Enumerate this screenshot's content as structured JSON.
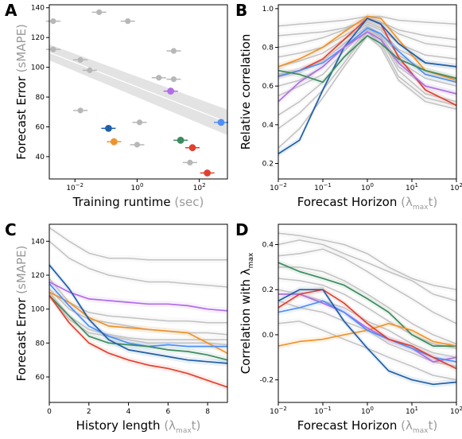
{
  "panels": {
    "A": {
      "letter": "A"
    },
    "B": {
      "letter": "B"
    },
    "C": {
      "letter": "C"
    },
    "D": {
      "letter": "D"
    }
  },
  "colors": {
    "gray": "#b7b7b7",
    "blue": "#1f5fa8",
    "lightblue": "#4f8ff7",
    "orange": "#f0922b",
    "green": "#3d8b5e",
    "red": "#e0412f",
    "purple": "#b06de6",
    "band": "#e3e3e3"
  },
  "chart_data": [
    {
      "panel": "A",
      "type": "scatter",
      "ylabel": {
        "main": "Forecast Error",
        "unit": "(sMAPE)"
      },
      "xlabel": {
        "main": "Training runtime",
        "unit": "(sec)"
      },
      "xscale": "log",
      "xlim": [
        0.0015,
        800
      ],
      "ylim": [
        25,
        142
      ],
      "xticks": [
        {
          "v": 0.01,
          "b": "10",
          "e": "−2"
        },
        {
          "v": 1,
          "b": "10",
          "e": "0"
        },
        {
          "v": 100,
          "b": "10",
          "e": "2"
        }
      ],
      "yticks": [
        40,
        60,
        80,
        100,
        120,
        140
      ],
      "trend": {
        "x": [
          0.0015,
          800
        ],
        "y": [
          110,
          63
        ]
      },
      "points": [
        {
          "x": 0.002,
          "y": 131,
          "c": "gray"
        },
        {
          "x": 0.06,
          "y": 137,
          "c": "gray"
        },
        {
          "x": 0.5,
          "y": 131,
          "c": "gray"
        },
        {
          "x": 0.002,
          "y": 112,
          "c": "gray"
        },
        {
          "x": 0.015,
          "y": 105,
          "c": "gray"
        },
        {
          "x": 0.03,
          "y": 98,
          "c": "gray"
        },
        {
          "x": 15,
          "y": 111,
          "c": "gray"
        },
        {
          "x": 5,
          "y": 93,
          "c": "gray"
        },
        {
          "x": 15,
          "y": 92,
          "c": "gray"
        },
        {
          "x": 12,
          "y": 84,
          "c": "purple"
        },
        {
          "x": 0.015,
          "y": 71,
          "c": "gray"
        },
        {
          "x": 1.2,
          "y": 63,
          "c": "gray"
        },
        {
          "x": 0.12,
          "y": 59,
          "c": "blue"
        },
        {
          "x": 0.18,
          "y": 50,
          "c": "orange"
        },
        {
          "x": 1,
          "y": 48,
          "c": "gray"
        },
        {
          "x": 25,
          "y": 51,
          "c": "green"
        },
        {
          "x": 60,
          "y": 46,
          "c": "red"
        },
        {
          "x": 50,
          "y": 36,
          "c": "gray"
        },
        {
          "x": 180,
          "y": 29,
          "c": "red"
        },
        {
          "x": 500,
          "y": 63,
          "c": "lightblue"
        }
      ]
    },
    {
      "panel": "B",
      "type": "line",
      "ylabel": {
        "main": "Relative correlation",
        "unit": ""
      },
      "xlabel": {
        "main": "Forecast Horizon",
        "unit": "(λ",
        "sub": "max",
        "tail": "t)"
      },
      "xscale": "log",
      "xlim": [
        0.01,
        100
      ],
      "ylim": [
        0.12,
        1.02
      ],
      "xticks": [
        {
          "v": 0.01,
          "b": "10",
          "e": "−2"
        },
        {
          "v": 0.1,
          "b": "10",
          "e": "−1"
        },
        {
          "v": 1,
          "b": "10",
          "e": "0"
        },
        {
          "v": 10,
          "b": "10",
          "e": "1"
        },
        {
          "v": 100,
          "b": "10",
          "e": "2"
        }
      ],
      "yticks": [
        0.2,
        0.4,
        0.6,
        0.8,
        1.0
      ],
      "x": [
        0.01,
        0.03,
        0.1,
        0.3,
        1,
        2,
        5,
        20,
        100
      ],
      "series": [
        {
          "c": "gray",
          "y": [
            0.91,
            0.92,
            0.93,
            0.94,
            0.96,
            0.96,
            0.94,
            0.93,
            0.92
          ]
        },
        {
          "c": "gray",
          "y": [
            0.86,
            0.87,
            0.88,
            0.9,
            0.94,
            0.93,
            0.89,
            0.86,
            0.84
          ]
        },
        {
          "c": "gray",
          "y": [
            0.8,
            0.82,
            0.85,
            0.89,
            0.95,
            0.93,
            0.87,
            0.82,
            0.8
          ]
        },
        {
          "c": "gray",
          "y": [
            0.75,
            0.77,
            0.8,
            0.86,
            0.93,
            0.9,
            0.82,
            0.76,
            0.74
          ]
        },
        {
          "c": "gray",
          "y": [
            0.7,
            0.73,
            0.77,
            0.84,
            0.92,
            0.89,
            0.79,
            0.72,
            0.7
          ]
        },
        {
          "c": "gray",
          "y": [
            0.66,
            0.68,
            0.73,
            0.82,
            0.91,
            0.87,
            0.76,
            0.68,
            0.64
          ]
        },
        {
          "c": "gray",
          "y": [
            0.6,
            0.63,
            0.7,
            0.8,
            0.9,
            0.86,
            0.73,
            0.64,
            0.6
          ]
        },
        {
          "c": "gray",
          "y": [
            0.55,
            0.6,
            0.66,
            0.78,
            0.9,
            0.85,
            0.7,
            0.6,
            0.56
          ]
        },
        {
          "c": "gray",
          "y": [
            0.45,
            0.52,
            0.62,
            0.75,
            0.89,
            0.84,
            0.68,
            0.56,
            0.52
          ]
        },
        {
          "c": "gray",
          "y": [
            0.38,
            0.46,
            0.58,
            0.72,
            0.88,
            0.82,
            0.65,
            0.54,
            0.5
          ]
        },
        {
          "c": "gray",
          "y": [
            0.28,
            0.38,
            0.54,
            0.7,
            0.86,
            0.8,
            0.63,
            0.52,
            0.48
          ]
        },
        {
          "c": "orange",
          "y": [
            0.7,
            0.74,
            0.8,
            0.88,
            0.96,
            0.95,
            0.84,
            0.68,
            0.63
          ]
        },
        {
          "c": "red",
          "y": [
            0.65,
            0.68,
            0.74,
            0.84,
            0.95,
            0.92,
            0.75,
            0.58,
            0.5
          ]
        },
        {
          "c": "blue",
          "y": [
            0.25,
            0.32,
            0.58,
            0.8,
            0.95,
            0.92,
            0.82,
            0.72,
            0.7
          ]
        },
        {
          "c": "lightblue",
          "y": [
            0.65,
            0.68,
            0.72,
            0.8,
            0.9,
            0.87,
            0.78,
            0.66,
            0.62
          ]
        },
        {
          "c": "purple",
          "y": [
            0.52,
            0.62,
            0.7,
            0.8,
            0.88,
            0.84,
            0.72,
            0.6,
            0.56
          ]
        },
        {
          "c": "green",
          "y": [
            0.68,
            0.66,
            0.62,
            0.75,
            0.86,
            0.82,
            0.74,
            0.68,
            0.64
          ]
        }
      ]
    },
    {
      "panel": "C",
      "type": "line",
      "ylabel": {
        "main": "Forecast Error",
        "unit": "(sMAPE)"
      },
      "xlabel": {
        "main": "History length",
        "unit": "(λ",
        "sub": "max",
        "tail": "t)"
      },
      "xscale": "linear",
      "xlim": [
        0,
        9
      ],
      "ylim": [
        45,
        150
      ],
      "xticks": [
        0,
        2,
        4,
        6,
        8
      ],
      "yticks": [
        60,
        80,
        100,
        120,
        140
      ],
      "x": [
        0,
        1,
        2,
        3,
        4,
        5,
        6,
        7,
        8,
        9
      ],
      "series": [
        {
          "c": "gray",
          "y": [
            148,
            140,
            133,
            130,
            130,
            129,
            129,
            129,
            129,
            129
          ]
        },
        {
          "c": "gray",
          "y": [
            140,
            130,
            124,
            120,
            118,
            116,
            116,
            115,
            114,
            113
          ]
        },
        {
          "c": "gray",
          "y": [
            118,
            104,
            98,
            96,
            95,
            94,
            93,
            93,
            92,
            92
          ]
        },
        {
          "c": "gray",
          "y": [
            112,
            100,
            94,
            92,
            90,
            88,
            87,
            86,
            86,
            85
          ]
        },
        {
          "c": "gray",
          "y": [
            110,
            96,
            88,
            85,
            83,
            82,
            82,
            82,
            82,
            82
          ]
        },
        {
          "c": "gray",
          "y": [
            108,
            94,
            86,
            84,
            82,
            80,
            80,
            80,
            80,
            79
          ]
        },
        {
          "c": "purple",
          "y": [
            116,
            110,
            106,
            105,
            104,
            103,
            103,
            102,
            100,
            99
          ]
        },
        {
          "c": "orange",
          "y": [
            110,
            104,
            95,
            90,
            89,
            88,
            87,
            86,
            80,
            74
          ]
        },
        {
          "c": "lightblue",
          "y": [
            115,
            102,
            90,
            84,
            80,
            78,
            79,
            78,
            78,
            78
          ]
        },
        {
          "c": "green",
          "y": [
            108,
            96,
            84,
            80,
            79,
            78,
            76,
            75,
            73,
            70
          ]
        },
        {
          "c": "blue",
          "y": [
            126,
            112,
            94,
            82,
            76,
            74,
            72,
            70,
            69,
            68
          ]
        },
        {
          "c": "red",
          "y": [
            108,
            92,
            80,
            74,
            70,
            67,
            65,
            62,
            58,
            54
          ]
        }
      ]
    },
    {
      "panel": "D",
      "type": "line",
      "ylabel": {
        "main": "Correlation with",
        "unit": "λ",
        "sub": "max"
      },
      "xlabel": {
        "main": "Forecast Horizon",
        "unit": "(λ",
        "sub": "max",
        "tail": "t)"
      },
      "xscale": "log",
      "xlim": [
        0.01,
        100
      ],
      "ylim": [
        -0.3,
        0.49
      ],
      "xticks": [
        {
          "v": 0.01,
          "b": "10",
          "e": "−2"
        },
        {
          "v": 0.1,
          "b": "10",
          "e": "−1"
        },
        {
          "v": 1,
          "b": "10",
          "e": "0"
        },
        {
          "v": 10,
          "b": "10",
          "e": "1"
        },
        {
          "v": 100,
          "b": "10",
          "e": "2"
        }
      ],
      "yticks": [
        -0.2,
        0.0,
        0.2,
        0.4
      ],
      "x": [
        0.01,
        0.03,
        0.1,
        0.3,
        1,
        3,
        10,
        30,
        100
      ],
      "series": [
        {
          "c": "gray",
          "y": [
            0.45,
            0.44,
            0.42,
            0.4,
            0.36,
            0.3,
            0.25,
            0.22,
            0.2
          ]
        },
        {
          "c": "gray",
          "y": [
            0.4,
            0.42,
            0.4,
            0.36,
            0.32,
            0.28,
            0.24,
            0.18,
            0.15
          ]
        },
        {
          "c": "gray",
          "y": [
            0.35,
            0.36,
            0.38,
            0.34,
            0.28,
            0.22,
            0.16,
            0.1,
            0.05
          ]
        },
        {
          "c": "gray",
          "y": [
            0.3,
            0.3,
            0.28,
            0.24,
            0.18,
            0.12,
            0.05,
            0.0,
            -0.04
          ]
        },
        {
          "c": "gray",
          "y": [
            0.25,
            0.24,
            0.22,
            0.18,
            0.12,
            0.06,
            0.0,
            -0.04,
            -0.06
          ]
        },
        {
          "c": "gray",
          "y": [
            0.2,
            0.18,
            0.15,
            0.12,
            0.06,
            0.02,
            -0.04,
            -0.08,
            -0.1
          ]
        },
        {
          "c": "gray",
          "y": [
            0.15,
            0.12,
            0.1,
            0.06,
            0.02,
            -0.04,
            -0.08,
            -0.12,
            -0.14
          ]
        },
        {
          "c": "gray",
          "y": [
            0.05,
            0.06,
            0.02,
            -0.02,
            -0.06,
            -0.1,
            -0.14,
            -0.18,
            -0.2
          ]
        },
        {
          "c": "green",
          "y": [
            0.32,
            0.28,
            0.25,
            0.22,
            0.16,
            0.1,
            0.0,
            -0.05,
            -0.05
          ]
        },
        {
          "c": "orange",
          "y": [
            -0.05,
            -0.03,
            -0.02,
            0.0,
            0.02,
            0.05,
            0.02,
            -0.03,
            -0.05
          ]
        },
        {
          "c": "purple",
          "y": [
            0.18,
            0.18,
            0.14,
            0.1,
            0.03,
            -0.02,
            -0.06,
            -0.12,
            -0.1
          ]
        },
        {
          "c": "lightblue",
          "y": [
            0.1,
            0.12,
            0.15,
            0.1,
            0.02,
            -0.02,
            -0.06,
            -0.1,
            -0.12
          ]
        },
        {
          "c": "red",
          "y": [
            0.12,
            0.18,
            0.2,
            0.14,
            0.05,
            -0.02,
            -0.05,
            -0.1,
            -0.15
          ]
        },
        {
          "c": "blue",
          "y": [
            0.15,
            0.2,
            0.2,
            0.06,
            -0.06,
            -0.16,
            -0.2,
            -0.22,
            -0.21
          ]
        }
      ]
    }
  ]
}
